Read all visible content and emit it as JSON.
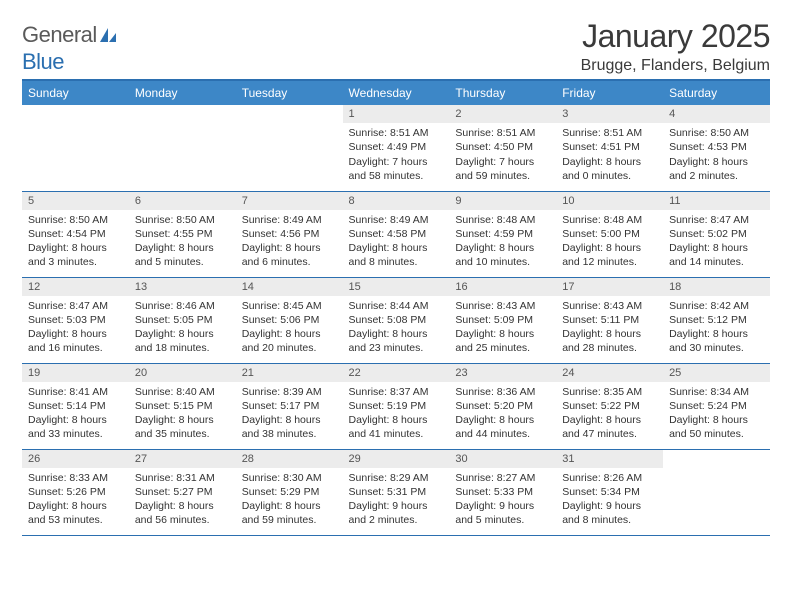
{
  "logo": {
    "text1": "General",
    "text2": "Blue"
  },
  "title": "January 2025",
  "location": "Brugge, Flanders, Belgium",
  "colors": {
    "header_bg": "#3d87c7",
    "header_border": "#2b6fb0",
    "daynum_bg": "#ececec",
    "text": "#333333",
    "logo_gray": "#5a5a5a",
    "logo_blue": "#2b6fb0"
  },
  "day_headers": [
    "Sunday",
    "Monday",
    "Tuesday",
    "Wednesday",
    "Thursday",
    "Friday",
    "Saturday"
  ],
  "weeks": [
    [
      null,
      null,
      null,
      {
        "n": "1",
        "sr": "8:51 AM",
        "ss": "4:49 PM",
        "dl": "7 hours and 58 minutes."
      },
      {
        "n": "2",
        "sr": "8:51 AM",
        "ss": "4:50 PM",
        "dl": "7 hours and 59 minutes."
      },
      {
        "n": "3",
        "sr": "8:51 AM",
        "ss": "4:51 PM",
        "dl": "8 hours and 0 minutes."
      },
      {
        "n": "4",
        "sr": "8:50 AM",
        "ss": "4:53 PM",
        "dl": "8 hours and 2 minutes."
      }
    ],
    [
      {
        "n": "5",
        "sr": "8:50 AM",
        "ss": "4:54 PM",
        "dl": "8 hours and 3 minutes."
      },
      {
        "n": "6",
        "sr": "8:50 AM",
        "ss": "4:55 PM",
        "dl": "8 hours and 5 minutes."
      },
      {
        "n": "7",
        "sr": "8:49 AM",
        "ss": "4:56 PM",
        "dl": "8 hours and 6 minutes."
      },
      {
        "n": "8",
        "sr": "8:49 AM",
        "ss": "4:58 PM",
        "dl": "8 hours and 8 minutes."
      },
      {
        "n": "9",
        "sr": "8:48 AM",
        "ss": "4:59 PM",
        "dl": "8 hours and 10 minutes."
      },
      {
        "n": "10",
        "sr": "8:48 AM",
        "ss": "5:00 PM",
        "dl": "8 hours and 12 minutes."
      },
      {
        "n": "11",
        "sr": "8:47 AM",
        "ss": "5:02 PM",
        "dl": "8 hours and 14 minutes."
      }
    ],
    [
      {
        "n": "12",
        "sr": "8:47 AM",
        "ss": "5:03 PM",
        "dl": "8 hours and 16 minutes."
      },
      {
        "n": "13",
        "sr": "8:46 AM",
        "ss": "5:05 PM",
        "dl": "8 hours and 18 minutes."
      },
      {
        "n": "14",
        "sr": "8:45 AM",
        "ss": "5:06 PM",
        "dl": "8 hours and 20 minutes."
      },
      {
        "n": "15",
        "sr": "8:44 AM",
        "ss": "5:08 PM",
        "dl": "8 hours and 23 minutes."
      },
      {
        "n": "16",
        "sr": "8:43 AM",
        "ss": "5:09 PM",
        "dl": "8 hours and 25 minutes."
      },
      {
        "n": "17",
        "sr": "8:43 AM",
        "ss": "5:11 PM",
        "dl": "8 hours and 28 minutes."
      },
      {
        "n": "18",
        "sr": "8:42 AM",
        "ss": "5:12 PM",
        "dl": "8 hours and 30 minutes."
      }
    ],
    [
      {
        "n": "19",
        "sr": "8:41 AM",
        "ss": "5:14 PM",
        "dl": "8 hours and 33 minutes."
      },
      {
        "n": "20",
        "sr": "8:40 AM",
        "ss": "5:15 PM",
        "dl": "8 hours and 35 minutes."
      },
      {
        "n": "21",
        "sr": "8:39 AM",
        "ss": "5:17 PM",
        "dl": "8 hours and 38 minutes."
      },
      {
        "n": "22",
        "sr": "8:37 AM",
        "ss": "5:19 PM",
        "dl": "8 hours and 41 minutes."
      },
      {
        "n": "23",
        "sr": "8:36 AM",
        "ss": "5:20 PM",
        "dl": "8 hours and 44 minutes."
      },
      {
        "n": "24",
        "sr": "8:35 AM",
        "ss": "5:22 PM",
        "dl": "8 hours and 47 minutes."
      },
      {
        "n": "25",
        "sr": "8:34 AM",
        "ss": "5:24 PM",
        "dl": "8 hours and 50 minutes."
      }
    ],
    [
      {
        "n": "26",
        "sr": "8:33 AM",
        "ss": "5:26 PM",
        "dl": "8 hours and 53 minutes."
      },
      {
        "n": "27",
        "sr": "8:31 AM",
        "ss": "5:27 PM",
        "dl": "8 hours and 56 minutes."
      },
      {
        "n": "28",
        "sr": "8:30 AM",
        "ss": "5:29 PM",
        "dl": "8 hours and 59 minutes."
      },
      {
        "n": "29",
        "sr": "8:29 AM",
        "ss": "5:31 PM",
        "dl": "9 hours and 2 minutes."
      },
      {
        "n": "30",
        "sr": "8:27 AM",
        "ss": "5:33 PM",
        "dl": "9 hours and 5 minutes."
      },
      {
        "n": "31",
        "sr": "8:26 AM",
        "ss": "5:34 PM",
        "dl": "9 hours and 8 minutes."
      },
      null
    ]
  ],
  "labels": {
    "sunrise": "Sunrise: ",
    "sunset": "Sunset: ",
    "daylight": "Daylight: "
  }
}
